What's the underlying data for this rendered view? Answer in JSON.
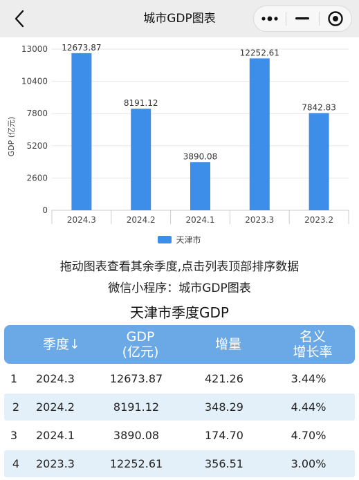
{
  "navbar": {
    "title": "城市GDP图表",
    "back_icon": "chevron-left-icon",
    "more_icon": "more-dots-icon",
    "minimize_icon": "minus-icon",
    "close_icon": "target-circle-icon"
  },
  "chart_data": {
    "type": "bar",
    "categories": [
      "2024.3",
      "2024.2",
      "2024.1",
      "2023.3",
      "2023.2"
    ],
    "series": [
      {
        "name": "天津市",
        "values": [
          12673.87,
          8191.12,
          3890.08,
          12252.61,
          7842.83
        ],
        "color": "#3d8ee8"
      }
    ],
    "data_labels": [
      "12673.87",
      "8191.12",
      "3890.08",
      "12252.61",
      "7842.83"
    ],
    "ylabel": "GDP (亿元)",
    "yticks": [
      "0",
      "2600",
      "5200",
      "7800",
      "10400",
      "13000"
    ],
    "ylim": [
      0,
      13000
    ],
    "grid": true,
    "legend": "bottom-center"
  },
  "captions": {
    "hint": "拖动图表查看其余季度,点击列表顶部排序数据",
    "mini_program": "微信小程序：城市GDP图表",
    "table_title": "天津市季度GDP"
  },
  "table": {
    "headers": {
      "season": "季度↓",
      "gdp_line1": "GDP",
      "gdp_line2": "(亿元)",
      "growth": "增量",
      "rate_line1": "名义",
      "rate_line2": "增长率"
    },
    "rows": [
      {
        "idx": "1",
        "season": "2024.3",
        "gdp": "12673.87",
        "growth": "421.26",
        "rate": "3.44%"
      },
      {
        "idx": "2",
        "season": "2024.2",
        "gdp": "8191.12",
        "growth": "348.29",
        "rate": "4.44%"
      },
      {
        "idx": "3",
        "season": "2024.1",
        "gdp": "3890.08",
        "growth": "174.70",
        "rate": "4.70%"
      },
      {
        "idx": "4",
        "season": "2023.3",
        "gdp": "12252.61",
        "growth": "356.51",
        "rate": "3.00%"
      }
    ]
  }
}
